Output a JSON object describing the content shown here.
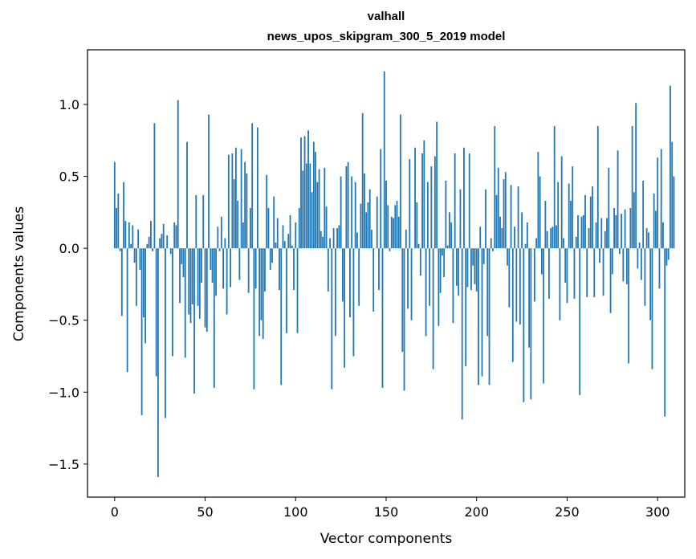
{
  "chart_data": {
    "type": "bar",
    "title_lines": [
      "valhall",
      "news_upos_skipgram_300_5_2019 model"
    ],
    "xlabel": "Vector components",
    "ylabel": "Components values",
    "xlim": [
      -15,
      315
    ],
    "ylim": [
      -1.73,
      1.38
    ],
    "xticks": [
      0,
      50,
      100,
      150,
      200,
      250,
      300
    ],
    "xtick_labels": [
      "0",
      "50",
      "100",
      "150",
      "200",
      "250",
      "300"
    ],
    "yticks": [
      -1.5,
      -1.0,
      -0.5,
      0.0,
      0.5,
      1.0
    ],
    "ytick_labels": [
      "−1.5",
      "−1.0",
      "−0.5",
      "0.0",
      "0.5",
      "1.0"
    ],
    "bar_color": "#1f77b4",
    "grid": false,
    "categories_start": 0,
    "values": [
      0.6,
      0.28,
      0.38,
      -0.02,
      -0.47,
      0.46,
      0.19,
      -0.86,
      0.18,
      0.03,
      0.16,
      -0.1,
      -0.4,
      0.13,
      -0.15,
      -1.16,
      -0.48,
      -0.66,
      0.03,
      0.08,
      0.19,
      -0.02,
      0.87,
      -0.89,
      -1.59,
      0.07,
      0.1,
      0.17,
      -1.18,
      0.09,
      0.0,
      -0.04,
      -0.75,
      0.18,
      0.16,
      1.03,
      -0.38,
      -0.11,
      -0.2,
      -0.76,
      0.74,
      -0.46,
      -0.52,
      -0.39,
      -1.01,
      0.37,
      -0.4,
      -0.49,
      -0.24,
      0.37,
      -0.55,
      -0.58,
      0.93,
      -0.15,
      -0.24,
      -0.97,
      -0.33,
      0.15,
      -0.02,
      0.22,
      -0.28,
      0.07,
      -0.46,
      0.65,
      -0.27,
      0.66,
      0.48,
      0.7,
      0.33,
      -0.22,
      0.69,
      0.18,
      0.6,
      0.52,
      -0.31,
      0.28,
      0.87,
      -0.98,
      -0.28,
      0.84,
      -0.61,
      -0.5,
      -0.63,
      -0.3,
      0.51,
      0.28,
      -0.15,
      -0.1,
      0.36,
      0.04,
      0.21,
      -0.29,
      -0.95,
      0.16,
      0.05,
      -0.59,
      0.1,
      0.23,
      0.02,
      -0.29,
      0.18,
      -0.59,
      0.28,
      0.77,
      0.54,
      0.78,
      0.59,
      0.82,
      0.59,
      0.39,
      0.74,
      0.67,
      0.46,
      0.55,
      0.12,
      0.08,
      0.56,
      0.29,
      -0.3,
      0.07,
      -0.98,
      0.14,
      -0.61,
      0.14,
      0.16,
      0.5,
      -0.37,
      -0.83,
      0.57,
      0.6,
      -0.48,
      0.5,
      -0.75,
      0.46,
      0.11,
      -0.4,
      0.31,
      0.94,
      0.52,
      0.25,
      0.32,
      0.41,
      0.13,
      -0.44,
      0.0,
      0.36,
      -0.29,
      0.69,
      -0.97,
      1.23,
      0.47,
      0.3,
      -0.02,
      0.22,
      0.21,
      0.3,
      0.33,
      0.22,
      0.93,
      -0.72,
      -0.99,
      0.13,
      -0.42,
      0.62,
      -0.5,
      0.0,
      0.7,
      0.32,
      0.03,
      -0.19,
      0.66,
      0.75,
      -0.61,
      0.46,
      -0.4,
      0.57,
      -0.84,
      0.64,
      0.88,
      -0.54,
      -0.31,
      -0.05,
      -0.2,
      0.47,
      0.02,
      0.25,
      0.18,
      -0.52,
      0.66,
      -0.26,
      -0.33,
      0.41,
      -1.19,
      0.7,
      -0.82,
      -0.27,
      0.66,
      -0.29,
      -0.12,
      -0.25,
      -0.3,
      -0.95,
      0.15,
      -0.89,
      -0.11,
      0.41,
      -0.61,
      -0.95,
      0.07,
      -0.02,
      0.85,
      0.37,
      0.56,
      0.22,
      0.14,
      0.48,
      0.53,
      -0.12,
      -0.41,
      0.44,
      -0.79,
      0.15,
      -0.51,
      0.43,
      -0.53,
      0.25,
      -1.07,
      0.03,
      0.18,
      -0.69,
      -1.05,
      0.0,
      -0.37,
      0.07,
      0.67,
      0.5,
      -0.18,
      -0.94,
      0.33,
      0.12,
      -0.35,
      0.14,
      0.15,
      0.85,
      0.16,
      0.46,
      -0.5,
      0.64,
      0.07,
      -0.24,
      -0.38,
      0.45,
      0.33,
      0.57,
      -0.35,
      0.08,
      0.23,
      -1.02,
      0.22,
      0.23,
      0.37,
      -0.34,
      0.14,
      0.36,
      0.43,
      -0.34,
      0.18,
      0.85,
      -0.1,
      0.21,
      -0.33,
      0.12,
      0.21,
      0.56,
      -0.45,
      -0.18,
      0.28,
      0.23,
      0.68,
      -0.04,
      0.24,
      -0.23,
      0.27,
      -0.25,
      -0.8,
      0.28,
      0.85,
      0.39,
      1.01,
      -0.14,
      0.04,
      -0.22,
      0.47,
      -0.4,
      0.14,
      0.11,
      -0.5,
      -0.84,
      0.38,
      0.26,
      0.63,
      -0.28,
      0.69,
      0.18,
      -1.17,
      -0.12,
      -0.08,
      1.13,
      0.74,
      0.5
    ]
  }
}
